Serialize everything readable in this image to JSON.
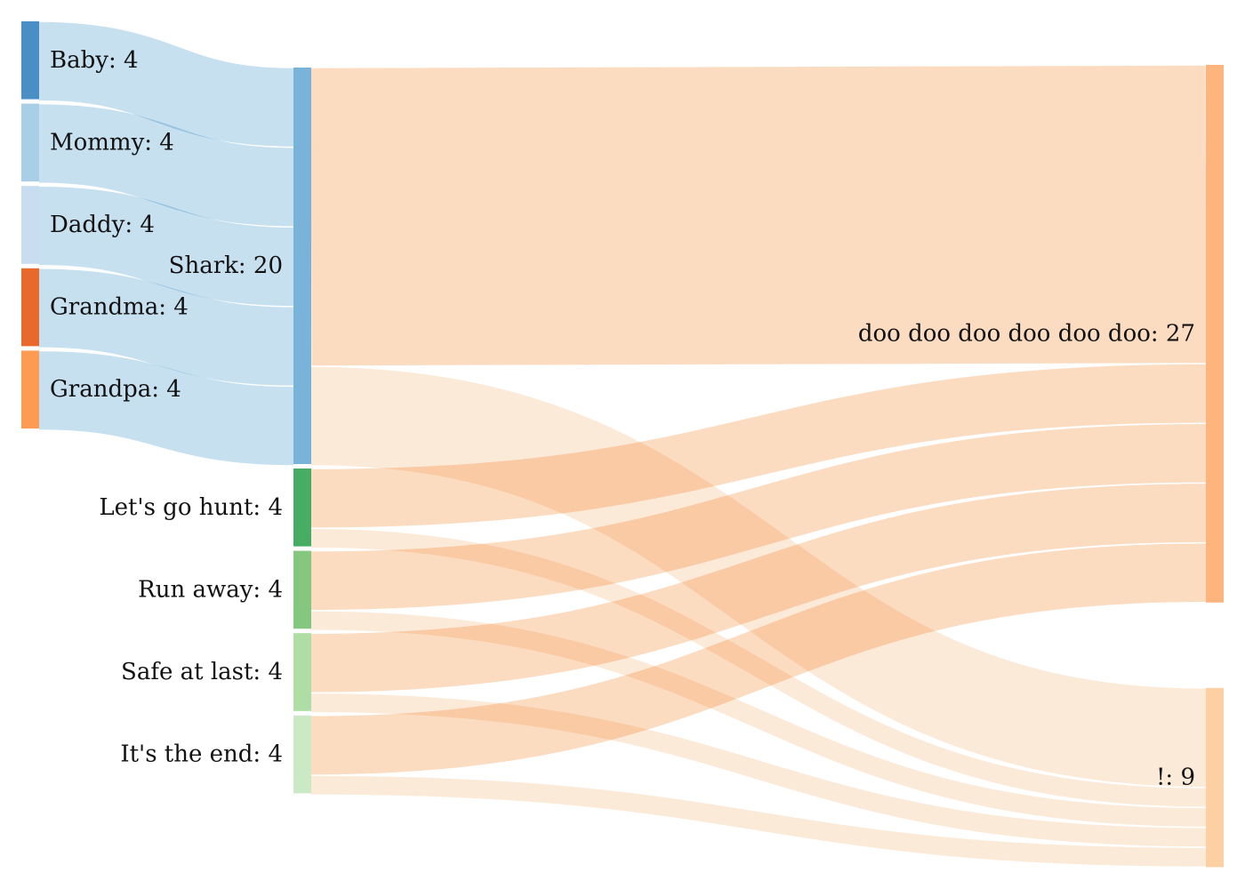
{
  "diagram": {
    "type": "sankey",
    "nodes": [
      {
        "id": "baby",
        "label": "Baby: 4",
        "name": "Baby",
        "value": 4,
        "color": "#4a8ec6"
      },
      {
        "id": "mommy",
        "label": "Mommy: 4",
        "name": "Mommy",
        "value": 4,
        "color": "#a9cfe6"
      },
      {
        "id": "daddy",
        "label": "Daddy: 4",
        "name": "Daddy",
        "value": 4,
        "color": "#c8ddef"
      },
      {
        "id": "grandma",
        "label": "Grandma: 4",
        "name": "Grandma",
        "value": 4,
        "color": "#e9692c"
      },
      {
        "id": "grandpa",
        "label": "Grandpa: 4",
        "name": "Grandpa",
        "value": 4,
        "color": "#fd9b52"
      },
      {
        "id": "shark",
        "label": "Shark: 20",
        "name": "Shark",
        "value": 20,
        "color": "#79b3da"
      },
      {
        "id": "lets-go-hunt",
        "label": "Let's go hunt: 4",
        "name": "Let's go hunt",
        "value": 4,
        "color": "#47ad64"
      },
      {
        "id": "run-away",
        "label": "Run away: 4",
        "name": "Run away",
        "value": 4,
        "color": "#85c77f"
      },
      {
        "id": "safe-at-last",
        "label": "Safe at last: 4",
        "name": "Safe at last",
        "value": 4,
        "color": "#aedda5"
      },
      {
        "id": "its-the-end",
        "label": "It's the end: 4",
        "name": "It's the end",
        "value": 4,
        "color": "#cce9c6"
      },
      {
        "id": "doo",
        "label": "doo doo doo doo doo doo: 27",
        "name": "doo doo doo doo doo doo",
        "value": 27,
        "color": "#fdb57d"
      },
      {
        "id": "bang",
        "label": "!: 9",
        "name": "!",
        "value": 9,
        "color": "#fdd0a3"
      }
    ],
    "links": [
      {
        "source": "baby",
        "target": "shark",
        "value": 4,
        "color": "#c6e0f0"
      },
      {
        "source": "mommy",
        "target": "shark",
        "value": 4,
        "color": "#c6e0f0"
      },
      {
        "source": "daddy",
        "target": "shark",
        "value": 4,
        "color": "#c6e0f0"
      },
      {
        "source": "grandma",
        "target": "shark",
        "value": 4,
        "color": "#c6e0f0"
      },
      {
        "source": "grandpa",
        "target": "shark",
        "value": 4,
        "color": "#c6e0f0"
      },
      {
        "source": "shark",
        "target": "doo",
        "value": 15,
        "color": "#fcdcc1"
      },
      {
        "source": "shark",
        "target": "bang",
        "value": 5,
        "color": "#fcead9"
      },
      {
        "source": "lets-go-hunt",
        "target": "doo",
        "value": 3,
        "color": "#fcdcc1"
      },
      {
        "source": "lets-go-hunt",
        "target": "bang",
        "value": 1,
        "color": "#fcead9"
      },
      {
        "source": "run-away",
        "target": "doo",
        "value": 3,
        "color": "#fcdcc1"
      },
      {
        "source": "run-away",
        "target": "bang",
        "value": 1,
        "color": "#fcead9"
      },
      {
        "source": "safe-at-last",
        "target": "doo",
        "value": 3,
        "color": "#fcdcc1"
      },
      {
        "source": "safe-at-last",
        "target": "bang",
        "value": 1,
        "color": "#fcead9"
      },
      {
        "source": "its-the-end",
        "target": "doo",
        "value": 3,
        "color": "#fcdcc1"
      },
      {
        "source": "its-the-end",
        "target": "bang",
        "value": 1,
        "color": "#fcead9"
      }
    ]
  }
}
